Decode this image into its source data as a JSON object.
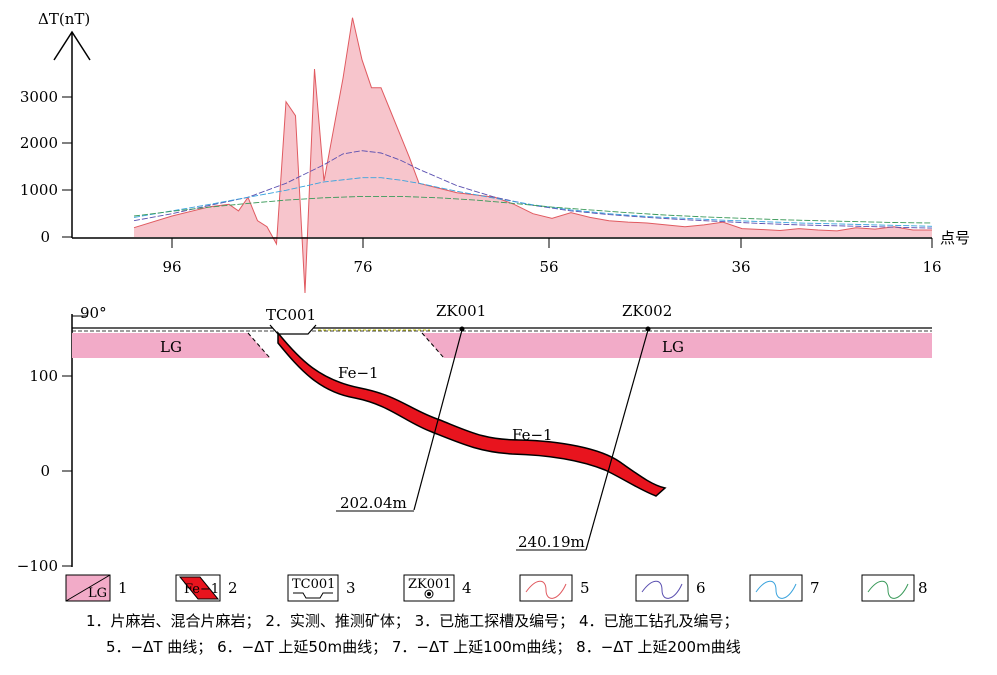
{
  "profile_chart": {
    "y_axis_label": "ΔT(nT)",
    "x_axis_label": "点号",
    "y_ticks": [
      "3000",
      "2000",
      "1000",
      "0"
    ],
    "x_ticks": [
      "96",
      "76",
      "56",
      "36",
      "16"
    ]
  },
  "section": {
    "angle_label": "90°",
    "y_ticks": [
      "100",
      "0",
      "−100"
    ],
    "trench_label": "TC001",
    "drill_labels": [
      "ZK001",
      "ZK002"
    ],
    "depth_labels": [
      "202.04m",
      "240.19m"
    ],
    "rock_labels": [
      "LG",
      "LG"
    ],
    "orebody_labels": [
      "Fe−1",
      "Fe−1"
    ]
  },
  "legend": {
    "numbers": [
      "1",
      "2",
      "3",
      "4",
      "5",
      "6",
      "7",
      "8"
    ],
    "swatch_texts": [
      "LG",
      "Fe−1",
      "TC001",
      "ZK001"
    ],
    "caption_line1": "1．片麻岩、混合片麻岩；  2．实测、推测矿体；  3．已施工探槽及编号；  4．已施工钻孔及编号；",
    "caption_line2": "5．−ΔT 曲线；  6．−ΔT 上延50m曲线；  7．−ΔT 上延100m曲线；  8．−ΔT 上延200m曲线"
  },
  "chart_data": {
    "type": "area",
    "xlabel": "点号",
    "ylabel": "ΔT(nT)",
    "xlim": [
      100,
      16
    ],
    "ylim": [
      0,
      4500
    ],
    "x_ticks": [
      96,
      76,
      56,
      36,
      16
    ],
    "y_ticks": [
      0,
      1000,
      2000,
      3000
    ],
    "series": [
      {
        "color": "#e05a60",
        "fill": "#f7c5cc",
        "x": [
          100,
          96,
          92,
          90,
          89,
          88,
          87,
          86,
          85,
          84,
          83,
          82,
          81,
          80,
          79,
          78,
          77,
          76,
          75,
          74,
          73,
          72,
          71,
          70,
          68,
          66,
          64,
          62,
          60,
          58,
          56,
          54,
          52,
          50,
          48,
          46,
          44,
          42,
          40,
          38,
          36,
          34,
          32,
          30,
          28,
          26,
          24,
          22,
          20,
          18,
          16
        ],
        "y": [
          200,
          450,
          650,
          700,
          560,
          850,
          350,
          220,
          -150,
          2900,
          2600,
          -1200,
          3600,
          1200,
          2300,
          3400,
          4700,
          3800,
          3200,
          3200,
          2700,
          2200,
          1700,
          1150,
          1050,
          950,
          900,
          850,
          700,
          500,
          400,
          520,
          420,
          350,
          320,
          300,
          260,
          220,
          260,
          320,
          180,
          160,
          140,
          180,
          150,
          130,
          200,
          170,
          220,
          150,
          150
        ]
      },
      {
        "color": "#5a4fb0",
        "x": [
          100,
          96,
          92,
          88,
          84,
          80,
          78,
          76,
          74,
          72,
          70,
          66,
          62,
          58,
          54,
          50,
          46,
          42,
          38,
          34,
          30,
          26,
          22,
          18,
          16
        ],
        "y": [
          350,
          500,
          680,
          850,
          1150,
          1550,
          1780,
          1850,
          1800,
          1650,
          1450,
          1100,
          850,
          680,
          560,
          480,
          420,
          370,
          330,
          290,
          260,
          240,
          220,
          200,
          190
        ]
      },
      {
        "color": "#3aa3dd",
        "x": [
          100,
          96,
          92,
          88,
          84,
          80,
          76,
          74,
          72,
          70,
          66,
          62,
          58,
          54,
          50,
          46,
          42,
          38,
          34,
          30,
          26,
          22,
          18,
          16
        ],
        "y": [
          420,
          560,
          700,
          850,
          1000,
          1180,
          1270,
          1270,
          1220,
          1150,
          980,
          830,
          690,
          580,
          500,
          440,
          400,
          360,
          330,
          300,
          280,
          260,
          240,
          230
        ]
      },
      {
        "color": "#3a9a5a",
        "x": [
          100,
          96,
          92,
          88,
          84,
          80,
          76,
          72,
          68,
          64,
          60,
          56,
          52,
          48,
          44,
          40,
          36,
          32,
          28,
          24,
          20,
          16
        ],
        "y": [
          450,
          550,
          640,
          720,
          790,
          840,
          870,
          870,
          840,
          790,
          720,
          640,
          580,
          520,
          470,
          430,
          400,
          370,
          350,
          330,
          310,
          300
        ]
      }
    ]
  }
}
